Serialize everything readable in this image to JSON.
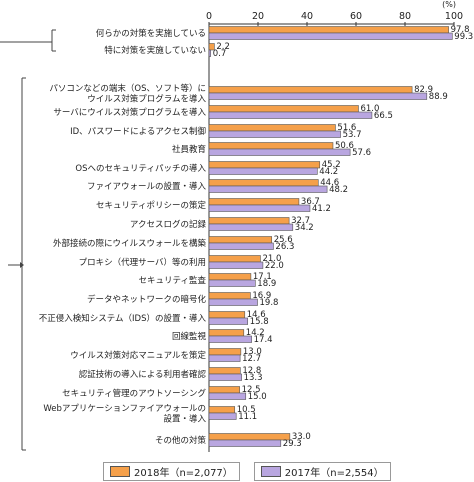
{
  "chart_data": {
    "type": "bar",
    "orientation": "horizontal",
    "unit": "(%)",
    "xlim": [
      0,
      100
    ],
    "x_ticks": [
      "0",
      "20",
      "40",
      "60",
      "80",
      "100"
    ],
    "categories": [
      [
        "何らかの対策を実施している"
      ],
      [
        "特に対策を実施していない"
      ],
      [
        "パソコンなどの端末（OS、ソフト等）に",
        "ウイルス対策プログラムを導入"
      ],
      [
        "サーバにウイルス対策プログラムを導入"
      ],
      [
        "ID、パスワードによるアクセス制御"
      ],
      [
        "社員教育"
      ],
      [
        "OSへのセキュリティパッチの導入"
      ],
      [
        "ファイアウォールの設置・導入"
      ],
      [
        "セキュリティポリシーの策定"
      ],
      [
        "アクセスログの記録"
      ],
      [
        "外部接続の際にウイルスウォールを構築"
      ],
      [
        "プロキシ（代理サーバ）等の利用"
      ],
      [
        "セキュリティ監査"
      ],
      [
        "データやネットワークの暗号化"
      ],
      [
        "不正侵入検知システム（IDS）の設置・導入"
      ],
      [
        "回線監視"
      ],
      [
        "ウイルス対策対応マニュアルを策定"
      ],
      [
        "認証技術の導入による利用者確認"
      ],
      [
        "セキュリティ管理のアウトソーシング"
      ],
      [
        "Webアプリケーションファイアウォールの",
        "設置・導入"
      ],
      [
        "その他の対策"
      ]
    ],
    "series": [
      {
        "name": "2018年（n=2,077）",
        "color": "#f5a04a",
        "values": [
          97.8,
          2.2,
          82.9,
          61.0,
          51.6,
          50.6,
          45.2,
          44.6,
          36.7,
          32.7,
          25.6,
          21.0,
          17.1,
          16.9,
          14.6,
          14.2,
          13.0,
          12.8,
          12.5,
          10.5,
          33.0
        ],
        "labels": [
          "97.8",
          "2.2",
          "82.9",
          "61.0",
          "51.6",
          "50.6",
          "45.2",
          "44.6",
          "36.7",
          "32.7",
          "25.6",
          "21.0",
          "17.1",
          "16.9",
          "14.6",
          "14.2",
          "13.0",
          "12.8",
          "12.5",
          "10.5",
          "33.0"
        ]
      },
      {
        "name": "2017年（n=2,554）",
        "color": "#b9a6e0",
        "values": [
          99.3,
          0.7,
          88.9,
          66.5,
          53.7,
          57.6,
          44.2,
          48.2,
          41.2,
          34.2,
          26.3,
          22.0,
          18.9,
          19.8,
          15.8,
          17.4,
          12.7,
          13.3,
          15.0,
          11.1,
          29.3
        ],
        "labels": [
          "99.3",
          "0.7",
          "88.9",
          "66.5",
          "53.7",
          "57.6",
          "44.2",
          "48.2",
          "41.2",
          "34.2",
          "26.3",
          "22.0",
          "18.9",
          "19.8",
          "15.8",
          "17.4",
          "12.7",
          "13.3",
          "15.0",
          "11.1",
          "29.3"
        ]
      }
    ],
    "legend": "bottom",
    "grid": false
  }
}
